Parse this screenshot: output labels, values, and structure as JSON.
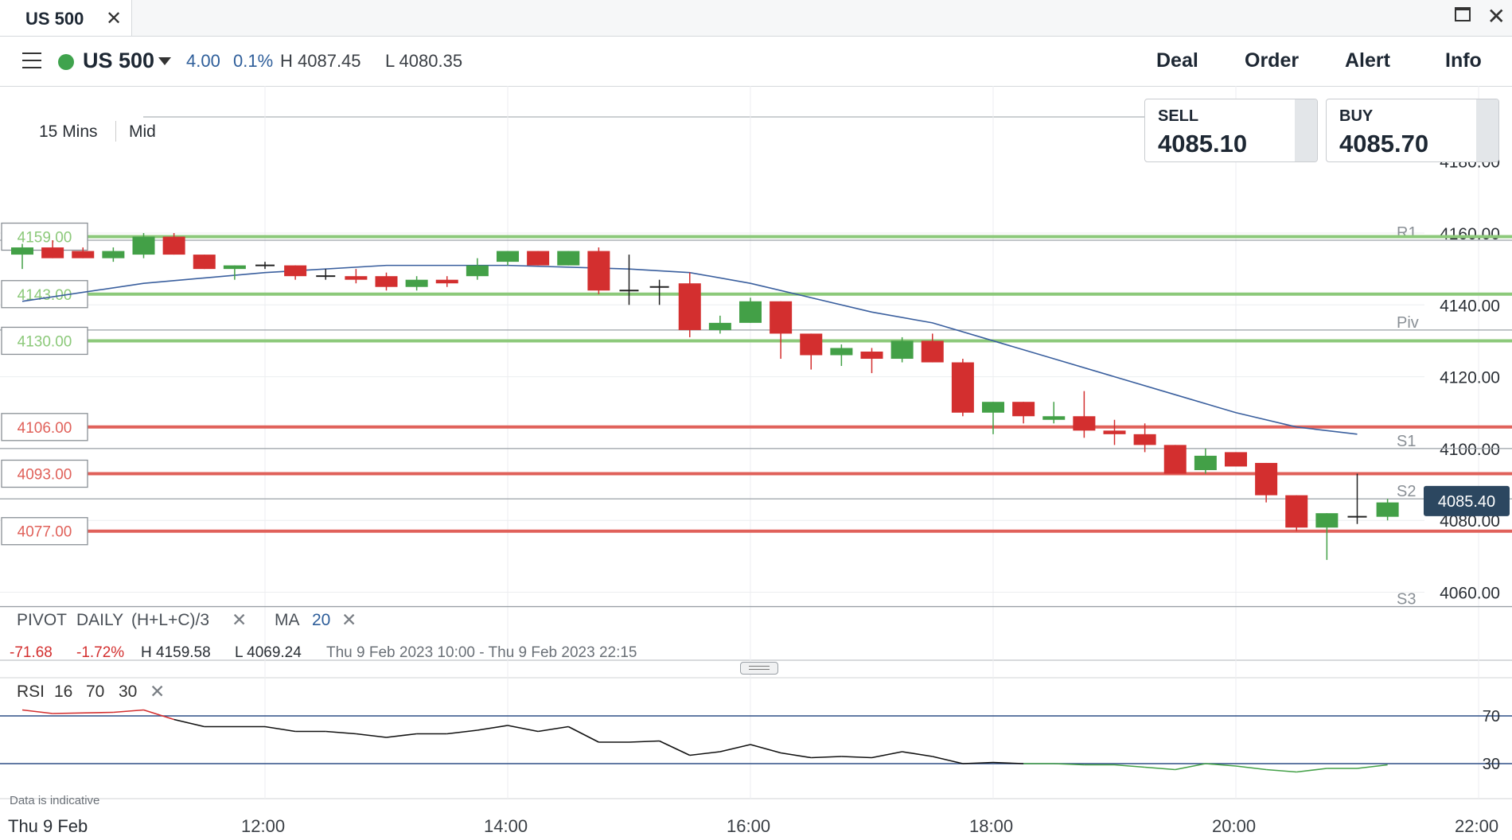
{
  "tab": {
    "title": "US 500",
    "close": "✕"
  },
  "window": {
    "close": "✕"
  },
  "header": {
    "instrument": "US 500",
    "change_points": "4.00",
    "change_percent": "0.1%",
    "high": "H 4087.45",
    "low": "L 4080.35",
    "nav": {
      "deal": "Deal",
      "order": "Order",
      "alert": "Alert",
      "info": "Info"
    },
    "status_color": "#3fa34d"
  },
  "toolbar": {
    "timeframe": "15 Mins",
    "price_type": "Mid"
  },
  "tickets": {
    "sell": {
      "label": "SELL",
      "value": "4085.10"
    },
    "buy": {
      "label": "BUY",
      "value": "4085.70"
    }
  },
  "legend": {
    "pivot": "PIVOT",
    "pivot_period": "DAILY",
    "pivot_formula": "(H+L+C)/3",
    "ma": "MA",
    "ma_period": "20",
    "close": "✕"
  },
  "stats": {
    "change": "-71.68",
    "change_pct": "-1.72%",
    "high": "H 4159.58",
    "low": "L 4069.24",
    "range": "Thu 9 Feb 2023 10:00 - Thu 9 Feb 2023 22:15"
  },
  "rsi": {
    "label": "RSI",
    "period": "16",
    "upper": "70",
    "lower": "30",
    "close": "✕"
  },
  "footer": {
    "indicative": "Data is indicative",
    "date": "Thu 9 Feb"
  },
  "colors": {
    "up": "#43a047",
    "down": "#d32f2f",
    "ma": "#3a5f9e",
    "support_line": "#e0615a",
    "resistance_line": "#8cc97a"
  },
  "chart_data": {
    "type": "candlestick",
    "instrument": "US 500",
    "interval": "15 Mins",
    "time_ticks": [
      "12:00",
      "14:00",
      "16:00",
      "18:00",
      "20:00",
      "22:00"
    ],
    "price_ticks": [
      "4160.00",
      "4140.00",
      "4120.00",
      "4100.00",
      "4080.00",
      "4060.00"
    ],
    "ylim": [
      4054,
      4188
    ],
    "last_price": "4085.40",
    "horizontal_levels": [
      {
        "label": "4159.00",
        "value": 4159,
        "kind": "resistance"
      },
      {
        "label": "4143.00",
        "value": 4143,
        "kind": "resistance"
      },
      {
        "label": "4130.00",
        "value": 4130,
        "kind": "resistance"
      },
      {
        "label": "4106.00",
        "value": 4106,
        "kind": "support"
      },
      {
        "label": "4093.00",
        "value": 4093,
        "kind": "support"
      },
      {
        "label": "4077.00",
        "value": 4077,
        "kind": "support"
      }
    ],
    "pivot_levels": [
      {
        "name": "R1",
        "value": 4158
      },
      {
        "name": "Piv",
        "value": 4133
      },
      {
        "name": "S1",
        "value": 4100
      },
      {
        "name": "S2",
        "value": 4086
      },
      {
        "name": "S3",
        "value": 4056
      }
    ],
    "candles": [
      {
        "time": "10:00",
        "o": 4154,
        "h": 4157,
        "l": 4150,
        "c": 4156
      },
      {
        "time": "10:15",
        "o": 4156,
        "h": 4158,
        "l": 4153,
        "c": 4153
      },
      {
        "time": "10:30",
        "o": 4155,
        "h": 4156,
        "l": 4153,
        "c": 4153
      },
      {
        "time": "10:45",
        "o": 4153,
        "h": 4156,
        "l": 4152,
        "c": 4155
      },
      {
        "time": "11:00",
        "o": 4154,
        "h": 4160,
        "l": 4153,
        "c": 4159
      },
      {
        "time": "11:15",
        "o": 4159,
        "h": 4160,
        "l": 4154,
        "c": 4154
      },
      {
        "time": "11:30",
        "o": 4154,
        "h": 4154,
        "l": 4150,
        "c": 4150
      },
      {
        "time": "11:45",
        "o": 4150,
        "h": 4151,
        "l": 4147,
        "c": 4151
      },
      {
        "time": "12:00",
        "o": 4151,
        "h": 4152,
        "l": 4150,
        "c": 4151
      },
      {
        "time": "12:15",
        "o": 4151,
        "h": 4151,
        "l": 4147,
        "c": 4148
      },
      {
        "time": "12:30",
        "o": 4148,
        "h": 4150,
        "l": 4147,
        "c": 4148
      },
      {
        "time": "12:45",
        "o": 4148,
        "h": 4150,
        "l": 4146,
        "c": 4147
      },
      {
        "time": "13:00",
        "o": 4148,
        "h": 4149,
        "l": 4144,
        "c": 4145
      },
      {
        "time": "13:15",
        "o": 4145,
        "h": 4148,
        "l": 4144,
        "c": 4147
      },
      {
        "time": "13:30",
        "o": 4147,
        "h": 4148,
        "l": 4145,
        "c": 4146
      },
      {
        "time": "13:45",
        "o": 4148,
        "h": 4153,
        "l": 4147,
        "c": 4151
      },
      {
        "time": "14:00",
        "o": 4152,
        "h": 4155,
        "l": 4151,
        "c": 4155
      },
      {
        "time": "14:15",
        "o": 4155,
        "h": 4155,
        "l": 4151,
        "c": 4151
      },
      {
        "time": "14:30",
        "o": 4151,
        "h": 4155,
        "l": 4151,
        "c": 4155
      },
      {
        "time": "14:45",
        "o": 4155,
        "h": 4156,
        "l": 4143,
        "c": 4144
      },
      {
        "time": "15:00",
        "o": 4144,
        "h": 4154,
        "l": 4140,
        "c": 4144
      },
      {
        "time": "15:15",
        "o": 4145,
        "h": 4147,
        "l": 4140,
        "c": 4145
      },
      {
        "time": "15:30",
        "o": 4146,
        "h": 4149,
        "l": 4131,
        "c": 4133
      },
      {
        "time": "15:45",
        "o": 4133,
        "h": 4137,
        "l": 4132,
        "c": 4135
      },
      {
        "time": "16:00",
        "o": 4135,
        "h": 4142,
        "l": 4135,
        "c": 4141
      },
      {
        "time": "16:15",
        "o": 4141,
        "h": 4141,
        "l": 4125,
        "c": 4132
      },
      {
        "time": "16:30",
        "o": 4132,
        "h": 4132,
        "l": 4122,
        "c": 4126
      },
      {
        "time": "16:45",
        "o": 4126,
        "h": 4129,
        "l": 4123,
        "c": 4128
      },
      {
        "time": "17:00",
        "o": 4127,
        "h": 4128,
        "l": 4121,
        "c": 4125
      },
      {
        "time": "17:15",
        "o": 4125,
        "h": 4131,
        "l": 4124,
        "c": 4130
      },
      {
        "time": "17:30",
        "o": 4130,
        "h": 4132,
        "l": 4124,
        "c": 4124
      },
      {
        "time": "17:45",
        "o": 4124,
        "h": 4125,
        "l": 4109,
        "c": 4110
      },
      {
        "time": "18:00",
        "o": 4110,
        "h": 4113,
        "l": 4104,
        "c": 4113
      },
      {
        "time": "18:15",
        "o": 4113,
        "h": 4113,
        "l": 4107,
        "c": 4109
      },
      {
        "time": "18:30",
        "o": 4108,
        "h": 4113,
        "l": 4107,
        "c": 4109
      },
      {
        "time": "18:45",
        "o": 4109,
        "h": 4116,
        "l": 4103,
        "c": 4105
      },
      {
        "time": "19:00",
        "o": 4105,
        "h": 4108,
        "l": 4101,
        "c": 4104
      },
      {
        "time": "19:15",
        "o": 4104,
        "h": 4107,
        "l": 4099,
        "c": 4101
      },
      {
        "time": "19:30",
        "o": 4101,
        "h": 4101,
        "l": 4093,
        "c": 4093
      },
      {
        "time": "19:45",
        "o": 4094,
        "h": 4100,
        "l": 4093,
        "c": 4098
      },
      {
        "time": "20:00",
        "o": 4099,
        "h": 4099,
        "l": 4095,
        "c": 4095
      },
      {
        "time": "20:15",
        "o": 4096,
        "h": 4096,
        "l": 4085,
        "c": 4087
      },
      {
        "time": "20:30",
        "o": 4087,
        "h": 4087,
        "l": 4077,
        "c": 4078
      },
      {
        "time": "20:45",
        "o": 4078,
        "h": 4082,
        "l": 4069,
        "c": 4082
      },
      {
        "time": "21:00",
        "o": 4081,
        "h": 4093,
        "l": 4079,
        "c": 4081
      },
      {
        "time": "21:15",
        "o": 4081,
        "h": 4086,
        "l": 4080,
        "c": 4085
      }
    ],
    "ma20": [
      {
        "time": "10:00",
        "v": 4141
      },
      {
        "time": "11:00",
        "v": 4146
      },
      {
        "time": "12:00",
        "v": 4149
      },
      {
        "time": "13:00",
        "v": 4151
      },
      {
        "time": "14:00",
        "v": 4151
      },
      {
        "time": "15:00",
        "v": 4150
      },
      {
        "time": "15:30",
        "v": 4149
      },
      {
        "time": "16:00",
        "v": 4146
      },
      {
        "time": "16:30",
        "v": 4142
      },
      {
        "time": "17:00",
        "v": 4138
      },
      {
        "time": "17:30",
        "v": 4135
      },
      {
        "time": "18:00",
        "v": 4130
      },
      {
        "time": "18:30",
        "v": 4125
      },
      {
        "time": "19:00",
        "v": 4120
      },
      {
        "time": "19:30",
        "v": 4115
      },
      {
        "time": "20:00",
        "v": 4110
      },
      {
        "time": "20:30",
        "v": 4106
      },
      {
        "time": "21:00",
        "v": 4104
      }
    ],
    "rsi_series": [
      {
        "time": "10:00",
        "v": 75
      },
      {
        "time": "10:15",
        "v": 72
      },
      {
        "time": "10:45",
        "v": 73
      },
      {
        "time": "11:00",
        "v": 75
      },
      {
        "time": "11:15",
        "v": 67
      },
      {
        "time": "11:30",
        "v": 61
      },
      {
        "time": "12:00",
        "v": 61
      },
      {
        "time": "12:15",
        "v": 57
      },
      {
        "time": "12:30",
        "v": 57
      },
      {
        "time": "12:45",
        "v": 55
      },
      {
        "time": "13:00",
        "v": 52
      },
      {
        "time": "13:15",
        "v": 55
      },
      {
        "time": "13:30",
        "v": 55
      },
      {
        "time": "13:45",
        "v": 58
      },
      {
        "time": "14:00",
        "v": 62
      },
      {
        "time": "14:15",
        "v": 57
      },
      {
        "time": "14:30",
        "v": 61
      },
      {
        "time": "14:45",
        "v": 48
      },
      {
        "time": "15:00",
        "v": 48
      },
      {
        "time": "15:15",
        "v": 49
      },
      {
        "time": "15:30",
        "v": 37
      },
      {
        "time": "15:45",
        "v": 40
      },
      {
        "time": "16:00",
        "v": 46
      },
      {
        "time": "16:15",
        "v": 39
      },
      {
        "time": "16:30",
        "v": 35
      },
      {
        "time": "16:45",
        "v": 36
      },
      {
        "time": "17:00",
        "v": 35
      },
      {
        "time": "17:15",
        "v": 40
      },
      {
        "time": "17:30",
        "v": 36
      },
      {
        "time": "17:45",
        "v": 30
      },
      {
        "time": "18:00",
        "v": 31
      },
      {
        "time": "18:15",
        "v": 30
      },
      {
        "time": "18:30",
        "v": 30
      },
      {
        "time": "18:45",
        "v": 29
      },
      {
        "time": "19:00",
        "v": 29
      },
      {
        "time": "19:15",
        "v": 27
      },
      {
        "time": "19:30",
        "v": 25
      },
      {
        "time": "19:45",
        "v": 30
      },
      {
        "time": "20:00",
        "v": 28
      },
      {
        "time": "20:15",
        "v": 25
      },
      {
        "time": "20:30",
        "v": 23
      },
      {
        "time": "20:45",
        "v": 26
      },
      {
        "time": "21:00",
        "v": 26
      },
      {
        "time": "21:15",
        "v": 29
      }
    ],
    "rsi_levels": [
      70,
      30
    ]
  }
}
